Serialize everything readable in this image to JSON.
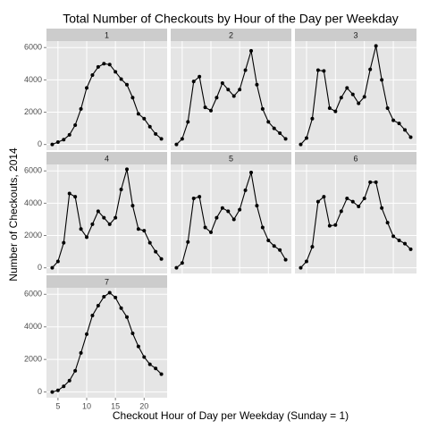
{
  "chart_data": {
    "type": "line",
    "title": "Total Number of Checkouts by Hour of the Day per Weekday",
    "xlabel": "Checkout Hour of Day per Weekday (Sunday = 1)",
    "ylabel": "Number of Checkouts, 2014",
    "x": [
      4,
      5,
      6,
      7,
      8,
      9,
      10,
      11,
      12,
      13,
      14,
      15,
      16,
      17,
      18,
      19,
      20,
      21,
      22,
      23
    ],
    "xlim": [
      3,
      24
    ],
    "xticks": [
      5,
      10,
      15,
      20
    ],
    "ylim": [
      -350,
      6400
    ],
    "yticks": [
      0,
      2000,
      4000,
      6000
    ],
    "grid": true,
    "color": "#000000",
    "series": [
      {
        "name": "1",
        "values": [
          0,
          150,
          300,
          600,
          1200,
          2200,
          3500,
          4300,
          4800,
          5000,
          4950,
          4500,
          4050,
          3700,
          2900,
          1900,
          1600,
          1100,
          650,
          350
        ]
      },
      {
        "name": "2",
        "values": [
          0,
          350,
          1400,
          3900,
          4200,
          2300,
          2100,
          2900,
          3800,
          3400,
          3000,
          3400,
          4600,
          5800,
          3700,
          2200,
          1400,
          1000,
          700,
          350
        ]
      },
      {
        "name": "3",
        "values": [
          0,
          400,
          1600,
          4600,
          4550,
          2250,
          2050,
          2900,
          3500,
          3100,
          2550,
          2950,
          4650,
          6100,
          4000,
          2250,
          1500,
          1300,
          900,
          450
        ]
      },
      {
        "name": "4",
        "values": [
          0,
          400,
          1550,
          4600,
          4400,
          2400,
          1900,
          2700,
          3500,
          3100,
          2700,
          3100,
          4850,
          6100,
          3850,
          2400,
          2300,
          1550,
          1000,
          550
        ]
      },
      {
        "name": "5",
        "values": [
          0,
          300,
          1600,
          4300,
          4400,
          2500,
          2200,
          3100,
          3700,
          3500,
          3000,
          3600,
          4800,
          5900,
          3850,
          2500,
          1700,
          1350,
          1100,
          500
        ]
      },
      {
        "name": "6",
        "values": [
          0,
          400,
          1300,
          4100,
          4400,
          2600,
          2650,
          3500,
          4300,
          4100,
          3800,
          4300,
          5300,
          5300,
          3700,
          2800,
          1950,
          1700,
          1500,
          1150
        ]
      },
      {
        "name": "7",
        "values": [
          0,
          100,
          350,
          700,
          1300,
          2400,
          3550,
          4700,
          5300,
          5850,
          6100,
          5800,
          5150,
          4600,
          3600,
          2800,
          2150,
          1700,
          1450,
          1100
        ]
      }
    ]
  }
}
